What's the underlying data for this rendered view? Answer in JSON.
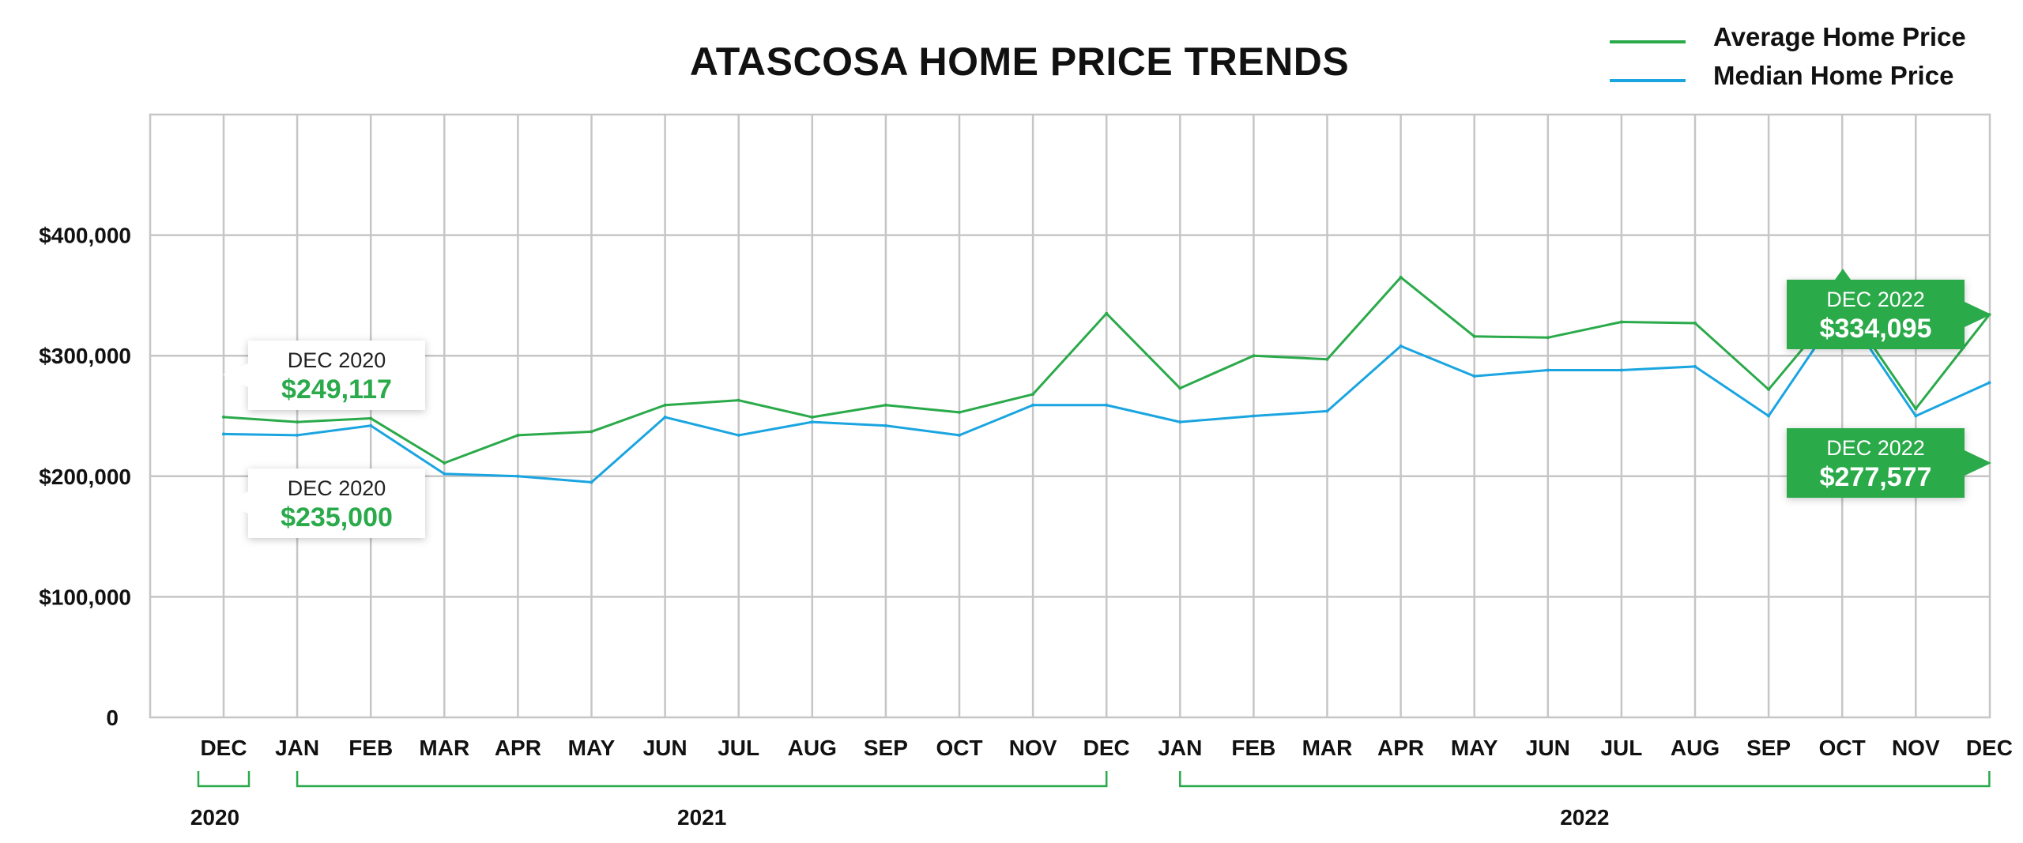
{
  "chart_data": {
    "type": "line",
    "title": "ATASCOSA HOME PRICE TRENDS",
    "categories": [
      "DEC",
      "JAN",
      "FEB",
      "MAR",
      "APR",
      "MAY",
      "JUN",
      "JUL",
      "AUG",
      "SEP",
      "OCT",
      "NOV",
      "DEC",
      "JAN",
      "FEB",
      "MAR",
      "APR",
      "MAY",
      "JUN",
      "JUL",
      "AUG",
      "SEP",
      "OCT",
      "NOV",
      "DEC"
    ],
    "year_groups": [
      {
        "label": "2020",
        "start": 0,
        "end": 0
      },
      {
        "label": "2021",
        "start": 1,
        "end": 12
      },
      {
        "label": "2022",
        "start": 13,
        "end": 24
      }
    ],
    "series": [
      {
        "name": "Average Home Price",
        "color": "#2aaa4a",
        "values": [
          249117,
          245000,
          248000,
          211000,
          234000,
          237000,
          259000,
          263000,
          249000,
          259000,
          253000,
          268000,
          335000,
          273000,
          300000,
          297000,
          365000,
          316000,
          315000,
          328000,
          327000,
          272000,
          345000,
          256000,
          334095
        ]
      },
      {
        "name": "Median Home Price",
        "color": "#1aa5e0",
        "values": [
          235000,
          234000,
          242000,
          202000,
          200000,
          195000,
          249000,
          234000,
          245000,
          242000,
          234000,
          259000,
          259000,
          245000,
          250000,
          254000,
          308000,
          283000,
          288000,
          288000,
          291000,
          250000,
          340000,
          250000,
          277577
        ]
      }
    ],
    "y_ticks": [
      {
        "value": 0,
        "label": "0"
      },
      {
        "value": 100000,
        "label": "$100,000"
      },
      {
        "value": 200000,
        "label": "$200,000"
      },
      {
        "value": 300000,
        "label": "$300,000"
      },
      {
        "value": 400000,
        "label": "$400,000"
      }
    ],
    "ylim": [
      0,
      500000
    ],
    "grid": true,
    "legend_position": "top-right",
    "callouts": [
      {
        "date": "DEC 2020",
        "value": "$249,117",
        "series": 0,
        "point": 0,
        "style": "white"
      },
      {
        "date": "DEC 2020",
        "value": "$235,000",
        "series": 1,
        "point": 0,
        "style": "white"
      },
      {
        "date": "DEC 2022",
        "value": "$334,095",
        "series": 0,
        "point": 24,
        "style": "green"
      },
      {
        "date": "DEC 2022",
        "value": "$277,577",
        "series": 1,
        "point": 24,
        "style": "green"
      }
    ],
    "colors": {
      "bracket": "#2aaa4a",
      "grid": "#c6c6c6",
      "callout_green": "#2aaa4a"
    }
  }
}
